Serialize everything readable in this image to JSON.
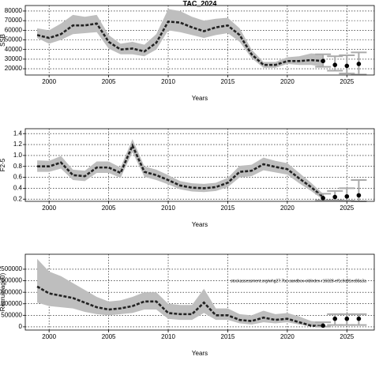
{
  "chart_data": [
    {
      "type": "line",
      "title": "TAC_2024",
      "ylabel": "SSB",
      "xlabel": "Years",
      "xlim": [
        1998,
        2027.3
      ],
      "ylim": [
        13500,
        85700
      ],
      "xticks": [
        2000,
        2005,
        2010,
        2015,
        2020,
        2025
      ],
      "yticks": [
        20000,
        30000,
        40000,
        50000,
        60000,
        70000,
        80000
      ],
      "grid": true,
      "x": [
        1999,
        2000,
        2001,
        2002,
        2003,
        2004,
        2005,
        2006,
        2007,
        2008,
        2009,
        2010,
        2011,
        2012,
        2013,
        2014,
        2015,
        2016,
        2017,
        2018,
        2019,
        2020,
        2021,
        2022,
        2023
      ],
      "series": [
        {
          "color": "#222222",
          "band_color": "#bebebe",
          "values": [
            55000,
            52000,
            56000,
            65000,
            65000,
            67000,
            48000,
            40000,
            41000,
            38000,
            47000,
            69000,
            68000,
            63000,
            59000,
            63000,
            65000,
            55000,
            35000,
            24000,
            24000,
            28000,
            28000,
            29000,
            28000
          ],
          "upper": [
            62000,
            60000,
            67000,
            76000,
            74000,
            76000,
            55000,
            46000,
            48000,
            45000,
            56000,
            82000,
            80000,
            74000,
            70000,
            72000,
            73000,
            62000,
            40000,
            27000,
            27000,
            32000,
            33000,
            36000,
            35000
          ],
          "lower": [
            52000,
            46000,
            50000,
            56000,
            57000,
            58000,
            41000,
            35000,
            35000,
            33000,
            40000,
            60000,
            58000,
            55000,
            52000,
            55000,
            57000,
            48000,
            31000,
            21000,
            21000,
            25000,
            24000,
            24000,
            22000
          ]
        }
      ],
      "projection": {
        "color": "#000000",
        "bar_color": "#aaaaaa",
        "x": [
          2023,
          2024,
          2025,
          2026
        ],
        "values": [
          28000,
          24000,
          23000,
          25000
        ],
        "lower": [
          22000,
          18000,
          15000,
          14000
        ],
        "upper": [
          35000,
          33000,
          34000,
          37000
        ]
      }
    },
    {
      "type": "line",
      "ylabel": "F2-5",
      "xlabel": "Years",
      "xlim": [
        1998,
        2027.3
      ],
      "ylim": [
        0.16,
        1.49
      ],
      "xticks": [
        2000,
        2005,
        2010,
        2015,
        2020,
        2025
      ],
      "yticks": [
        0.2,
        0.4,
        0.6,
        0.8,
        1,
        {
          "value": 1,
          "label": "1.0"
        },
        1.2,
        1.4
      ],
      "grid": true,
      "x": [
        1999,
        2000,
        2001,
        2002,
        2003,
        2004,
        2005,
        2006,
        2007,
        2008,
        2009,
        2010,
        2011,
        2012,
        2013,
        2014,
        2015,
        2016,
        2017,
        2018,
        2019,
        2020,
        2021,
        2022,
        2023
      ],
      "series": [
        {
          "color": "#222222",
          "band_color": "#bebebe",
          "values": [
            0.8,
            0.8,
            0.87,
            0.64,
            0.62,
            0.78,
            0.78,
            0.68,
            1.18,
            0.7,
            0.64,
            0.55,
            0.45,
            0.41,
            0.4,
            0.42,
            0.5,
            0.7,
            0.72,
            0.84,
            0.79,
            0.75,
            0.58,
            0.42,
            0.24
          ],
          "upper": [
            0.91,
            0.9,
            0.99,
            0.74,
            0.72,
            0.89,
            0.89,
            0.78,
            1.3,
            0.8,
            0.74,
            0.64,
            0.53,
            0.49,
            0.48,
            0.5,
            0.59,
            0.81,
            0.83,
            0.96,
            0.9,
            0.86,
            0.68,
            0.5,
            0.3
          ],
          "lower": [
            0.7,
            0.7,
            0.76,
            0.55,
            0.53,
            0.68,
            0.68,
            0.59,
            1.06,
            0.61,
            0.55,
            0.47,
            0.38,
            0.34,
            0.33,
            0.35,
            0.42,
            0.6,
            0.62,
            0.73,
            0.69,
            0.65,
            0.49,
            0.35,
            0.19
          ]
        }
      ],
      "projection": {
        "color": "#000000",
        "bar_color": "#aaaaaa",
        "x": [
          2023,
          2024,
          2025,
          2026
        ],
        "values": [
          0.22,
          0.24,
          0.25,
          0.27
        ],
        "lower": [
          0.18,
          0.18,
          0.17,
          0.16
        ],
        "upper": [
          0.3,
          0.35,
          0.4,
          0.55
        ]
      }
    },
    {
      "type": "line",
      "ylabel": "Recruit(age0)",
      "xlabel": "Years",
      "annotation": "stockassessment.org/whg27.7bc-sandbox-oldindex-r16328-ef1c9c81ec83a3a",
      "xlim": [
        1998,
        2027.3
      ],
      "ylim": [
        -140000,
        3150000
      ],
      "xticks": [
        2000,
        2005,
        2010,
        2015,
        2020,
        2025
      ],
      "yticks": [
        0,
        500000,
        1000000,
        1500000,
        2000000,
        2500000
      ],
      "grid": true,
      "x": [
        1999,
        2000,
        2001,
        2002,
        2003,
        2004,
        2005,
        2006,
        2007,
        2008,
        2009,
        2010,
        2011,
        2012,
        2013,
        2014,
        2015,
        2016,
        2017,
        2018,
        2019,
        2020,
        2021,
        2022,
        2023
      ],
      "series": [
        {
          "color": "#222222",
          "band_color": "#bebebe",
          "values": [
            1750000,
            1450000,
            1350000,
            1250000,
            1050000,
            850000,
            750000,
            800000,
            900000,
            1100000,
            1100000,
            600000,
            550000,
            550000,
            1050000,
            500000,
            500000,
            300000,
            250000,
            400000,
            300000,
            350000,
            200000,
            50000,
            30000
          ],
          "upper": [
            2950000,
            2400000,
            2200000,
            1900000,
            1600000,
            1300000,
            1100000,
            1150000,
            1300000,
            1500000,
            1500000,
            1000000,
            950000,
            950000,
            1650000,
            800000,
            800000,
            550000,
            500000,
            700000,
            550000,
            600000,
            450000,
            250000,
            200000
          ],
          "lower": [
            1050000,
            900000,
            850000,
            800000,
            650000,
            550000,
            500000,
            550000,
            600000,
            750000,
            750000,
            350000,
            300000,
            300000,
            600000,
            300000,
            300000,
            150000,
            100000,
            200000,
            150000,
            200000,
            100000,
            10000,
            0
          ]
        }
      ],
      "projection": {
        "color": "#000000",
        "bar_color": "#aaaaaa",
        "x": [
          2023,
          2024,
          2025,
          2026
        ],
        "values": [
          50000,
          350000,
          350000,
          350000
        ],
        "lower": [
          10000,
          80000,
          80000,
          80000
        ],
        "upper": [
          200000,
          550000,
          550000,
          550000
        ]
      }
    }
  ]
}
